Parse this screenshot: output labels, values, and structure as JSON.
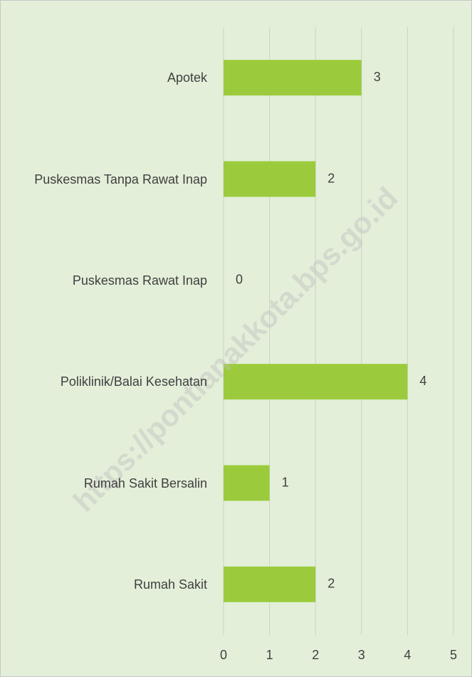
{
  "chart_data": {
    "type": "bar",
    "orientation": "horizontal",
    "categories": [
      "Apotek",
      "Puskesmas Tanpa Rawat Inap",
      "Puskesmas Rawat Inap",
      "Poliklinik/Balai Kesehatan",
      "Rumah Sakit Bersalin",
      "Rumah Sakit"
    ],
    "values": [
      3,
      2,
      0,
      4,
      1,
      2
    ],
    "color": "#9bcb3c",
    "xlim": [
      0,
      5
    ],
    "xticks": [
      0,
      1,
      2,
      3,
      4,
      5
    ],
    "grid": true,
    "watermark": "https://pontianakkota.bps.go.id"
  }
}
